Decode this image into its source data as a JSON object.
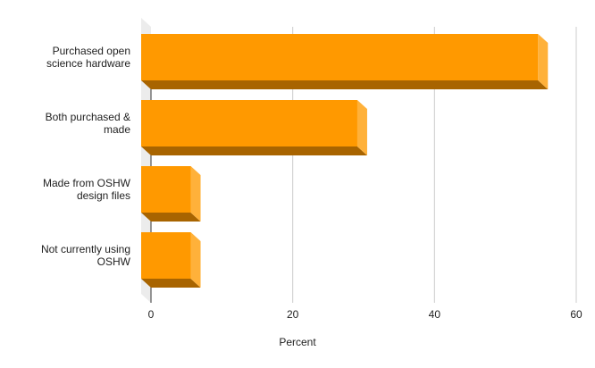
{
  "chart_data": {
    "type": "bar",
    "orientation": "horizontal",
    "style": "3d",
    "categories": [
      "Purchased open science hardware",
      "Both purchased & made",
      "Made from OSHW design files",
      "Not currently using OSHW"
    ],
    "category_lines": [
      [
        "Purchased open",
        "science hardware"
      ],
      [
        "Both purchased &",
        "made"
      ],
      [
        "Made from OSHW",
        "design files"
      ],
      [
        "Not currently using",
        "OSHW"
      ]
    ],
    "values": [
      56,
      30.5,
      7,
      7
    ],
    "xlabel": "Percent",
    "ylabel": "",
    "xlim": [
      0,
      60
    ],
    "x_ticks": [
      0,
      20,
      40,
      60
    ],
    "grid": "vertical",
    "legend": "none",
    "colors": {
      "bar_front": "#ff9900",
      "bar_side": "#ffb13a",
      "bar_bottom": "#a86400",
      "wall": "#ececec",
      "grid": "#cccccc"
    }
  }
}
